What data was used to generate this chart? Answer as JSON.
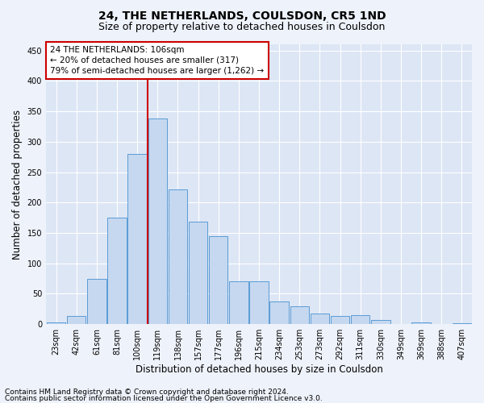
{
  "title": "24, THE NETHERLANDS, COULSDON, CR5 1ND",
  "subtitle": "Size of property relative to detached houses in Coulsdon",
  "xlabel": "Distribution of detached houses by size in Coulsdon",
  "ylabel": "Number of detached properties",
  "bar_labels": [
    "23sqm",
    "42sqm",
    "61sqm",
    "81sqm",
    "100sqm",
    "119sqm",
    "138sqm",
    "157sqm",
    "177sqm",
    "196sqm",
    "215sqm",
    "234sqm",
    "253sqm",
    "273sqm",
    "292sqm",
    "311sqm",
    "330sqm",
    "349sqm",
    "369sqm",
    "388sqm",
    "407sqm"
  ],
  "bar_values": [
    3,
    14,
    75,
    175,
    280,
    338,
    222,
    168,
    145,
    70,
    70,
    37,
    30,
    18,
    13,
    15,
    7,
    0,
    3,
    0,
    2
  ],
  "bar_color": "#c5d8f0",
  "bar_edge_color": "#5b9bd5",
  "vline_color": "#cc0000",
  "annotation_text": "24 THE NETHERLANDS: 106sqm\n← 20% of detached houses are smaller (317)\n79% of semi-detached houses are larger (1,262) →",
  "annotation_box_color": "#ffffff",
  "annotation_box_edge": "#cc0000",
  "ylim": [
    0,
    460
  ],
  "yticks": [
    0,
    50,
    100,
    150,
    200,
    250,
    300,
    350,
    400,
    450
  ],
  "footer_line1": "Contains HM Land Registry data © Crown copyright and database right 2024.",
  "footer_line2": "Contains public sector information licensed under the Open Government Licence v3.0.",
  "bg_color": "#eef2fa",
  "plot_bg_color": "#dde6f5",
  "grid_color": "#ffffff",
  "title_fontsize": 10,
  "subtitle_fontsize": 9,
  "axis_label_fontsize": 8.5,
  "tick_fontsize": 7,
  "annotation_fontsize": 7.5,
  "footer_fontsize": 6.5
}
